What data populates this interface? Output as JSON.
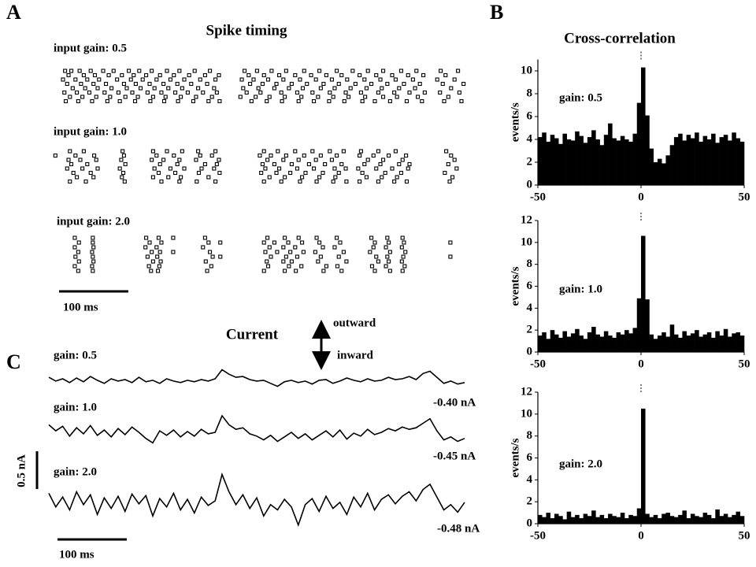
{
  "chart_data": [
    {
      "type": "raster",
      "panel_label": "A",
      "title": "Spike timing",
      "xlim": [
        -20,
        600
      ],
      "scale_bar": {
        "value": 100,
        "label": "100 ms"
      },
      "series": [
        {
          "name": "input gain: 0.5",
          "trials": [
            [
              3,
              12,
              24,
              40,
              58,
              73,
              95,
              110,
              128,
              150,
              168,
              190,
              212,
              262,
              280,
              301,
              322,
              348,
              370,
              395,
              418,
              440,
              462,
              488,
              510,
              545,
              570
            ],
            [
              8,
              30,
              46,
              66,
              85,
              102,
              120,
              140,
              160,
              182,
              205,
              225,
              268,
              290,
              312,
              335,
              358,
              380,
              402,
              428,
              452,
              475,
              498,
              520,
              552
            ],
            [
              0,
              18,
              35,
              52,
              78,
              98,
              115,
              135,
              155,
              175,
              198,
              220,
              258,
              275,
              296,
              318,
              342,
              365,
              388,
              410,
              435,
              458,
              480,
              505,
              540,
              565
            ],
            [
              6,
              26,
              44,
              62,
              88,
              105,
              125,
              145,
              165,
              185,
              208,
              270,
              288,
              308,
              330,
              352,
              376,
              398,
              422,
              445,
              468,
              492,
              515,
              548,
              578
            ],
            [
              14,
              32,
              50,
              70,
              92,
              112,
              132,
              152,
              172,
              195,
              218,
              260,
              282,
              305,
              326,
              346,
              372,
              392,
              415,
              438,
              460,
              485,
              508,
              560
            ],
            [
              2,
              20,
              38,
              60,
              80,
              100,
              122,
              142,
              162,
              180,
              202,
              222,
              265,
              285,
              315,
              338,
              360,
              385,
              408,
              430,
              455,
              478,
              500,
              522,
              544,
              572
            ],
            [
              10,
              28,
              48,
              68,
              90,
              108,
              130,
              148,
              170,
              192,
              215,
              256,
              278,
              298,
              320,
              344,
              368,
              390,
              412,
              436,
              462,
              482,
              512,
              556
            ],
            [
              4,
              22,
              42,
              64,
              82,
              104,
              126,
              146,
              166,
              188,
              210,
              226,
              272,
              294,
              316,
              340,
              362,
              384,
              406,
              432,
              450,
              472,
              496,
              518,
              550,
              575
            ]
          ]
        },
        {
          "name": "input gain: 1.0",
          "trials": [
            [
              10,
              30,
              86,
              130,
              150,
              172,
              195,
              220,
              290,
              310,
              335,
              360,
              385,
              405,
              430,
              455,
              480,
              553
            ],
            [
              -11,
              18,
              45,
              88,
              135,
              160,
              198,
              215,
              284,
              300,
              322,
              348,
              372,
              395,
              428,
              448,
              470,
              495,
              560
            ],
            [
              8,
              25,
              48,
              84,
              128,
              145,
              168,
              192,
              225,
              295,
              318,
              340,
              365,
              388,
              440,
              462,
              490,
              565
            ],
            [
              12,
              35,
              90,
              140,
              165,
              205,
              222,
              288,
              305,
              330,
              355,
              378,
              402,
              435,
              458,
              485,
              500,
              556
            ],
            [
              6,
              28,
              50,
              82,
              132,
              155,
              175,
              200,
              218,
              292,
              312,
              338,
              362,
              392,
              408,
              426,
              452,
              475,
              498,
              568
            ],
            [
              15,
              40,
              87,
              138,
              162,
              196,
              226,
              286,
              308,
              328,
              350,
              375,
              398,
              432,
              465,
              488,
              551
            ],
            [
              20,
              44,
              85,
              130,
              152,
              170,
              210,
              298,
              320,
              345,
              370,
              393,
              438,
              460,
              482,
              562
            ],
            [
              10,
              33,
              89,
              142,
              168,
              193,
              220,
              290,
              315,
              342,
              366,
              390,
              409,
              428,
              455,
              478,
              496,
              558
            ]
          ]
        },
        {
          "name": "input gain: 2.0",
          "trials": [
            [
              17,
              43,
              120,
              138,
              159,
              205,
              295,
              320,
              340,
              366,
              395,
              445,
              468,
              490
            ],
            [
              23,
              43,
              125,
              142,
              210,
              227,
              290,
              305,
              325,
              345,
              370,
              400,
              450,
              470,
              492,
              559
            ],
            [
              17,
              44,
              119,
              135,
              202,
              298,
              318,
              335,
              375,
              392,
              448,
              466,
              489
            ],
            [
              22,
              42,
              128,
              140,
              159,
              212,
              292,
              309,
              328,
              347,
              364,
              405,
              443,
              472,
              494
            ],
            [
              18,
              43,
              122,
              136,
              216,
              227,
              300,
              322,
              338,
              372,
              398,
              452,
              468,
              491,
              559
            ],
            [
              23,
              44,
              130,
              141,
              206,
              294,
              318,
              330,
              368,
              409,
              455,
              470,
              489
            ],
            [
              17,
              42,
              124,
              139,
              214,
              296,
              326,
              344,
              380,
              396,
              446,
              466,
              493
            ],
            [
              22,
              43,
              127,
              137,
              208,
              290,
              320,
              336,
              376,
              402,
              450,
              472,
              490
            ]
          ]
        }
      ]
    },
    {
      "type": "histogram",
      "panel_label": "B",
      "title": "Cross-correlation",
      "ylabel": "events/s",
      "annotation": "gain: 0.5",
      "xlim": [
        -50,
        50
      ],
      "xticks": [
        -50,
        0,
        50
      ],
      "ylim": [
        0,
        11
      ],
      "yticks": [
        0,
        2,
        4,
        6,
        8,
        10
      ],
      "bins": [
        -50,
        -48,
        -46,
        -44,
        -42,
        -40,
        -38,
        -36,
        -34,
        -32,
        -30,
        -28,
        -26,
        -24,
        -22,
        -20,
        -18,
        -16,
        -14,
        -12,
        -10,
        -8,
        -6,
        -4,
        -2,
        0,
        2,
        4,
        6,
        8,
        10,
        12,
        14,
        16,
        18,
        20,
        22,
        24,
        26,
        28,
        30,
        32,
        34,
        36,
        38,
        40,
        42,
        44,
        46,
        48,
        50
      ],
      "values": [
        4.2,
        4.6,
        3.8,
        4.4,
        4.1,
        3.6,
        4.5,
        4.0,
        3.9,
        4.7,
        4.3,
        3.7,
        4.2,
        4.8,
        4.0,
        3.5,
        4.4,
        5.4,
        4.1,
        3.9,
        4.3,
        4.0,
        3.8,
        4.5,
        7.2,
        10.3,
        6.1,
        3.2,
        2.0,
        2.3,
        1.9,
        2.6,
        3.5,
        4.2,
        4.5,
        3.9,
        4.4,
        4.1,
        4.6,
        3.8,
        4.3,
        4.0,
        4.5,
        3.7,
        4.2,
        4.4,
        3.9,
        4.6,
        4.1,
        3.8
      ]
    },
    {
      "type": "histogram",
      "ylabel": "events/s",
      "annotation": "gain: 1.0",
      "xlim": [
        -50,
        50
      ],
      "xticks": [
        -50,
        0,
        50
      ],
      "ylim": [
        0,
        12
      ],
      "yticks": [
        0,
        2,
        4,
        6,
        8,
        10,
        12
      ],
      "bins": [
        -50,
        -48,
        -46,
        -44,
        -42,
        -40,
        -38,
        -36,
        -34,
        -32,
        -30,
        -28,
        -26,
        -24,
        -22,
        -20,
        -18,
        -16,
        -14,
        -12,
        -10,
        -8,
        -6,
        -4,
        -2,
        0,
        2,
        4,
        6,
        8,
        10,
        12,
        14,
        16,
        18,
        20,
        22,
        24,
        26,
        28,
        30,
        32,
        34,
        36,
        38,
        40,
        42,
        44,
        46,
        48,
        50
      ],
      "values": [
        1.5,
        1.8,
        1.2,
        2.0,
        1.6,
        1.3,
        1.9,
        1.4,
        1.7,
        2.1,
        1.5,
        1.2,
        1.8,
        2.3,
        1.6,
        1.4,
        1.9,
        1.5,
        1.3,
        1.8,
        1.6,
        2.0,
        1.7,
        2.2,
        4.9,
        10.6,
        4.8,
        1.6,
        1.2,
        1.5,
        1.8,
        1.4,
        2.5,
        1.6,
        1.3,
        1.9,
        1.5,
        1.7,
        2.0,
        1.4,
        1.6,
        1.8,
        1.3,
        1.9,
        1.5,
        2.1,
        1.4,
        1.7,
        1.8,
        1.5
      ]
    },
    {
      "type": "histogram",
      "ylabel": "events/s",
      "annotation": "gain: 2.0",
      "xlim": [
        -50,
        50
      ],
      "xticks": [
        -50,
        0,
        50
      ],
      "ylim": [
        0,
        12
      ],
      "yticks": [
        0,
        2,
        4,
        6,
        8,
        10,
        12
      ],
      "bins": [
        -50,
        -48,
        -46,
        -44,
        -42,
        -40,
        -38,
        -36,
        -34,
        -32,
        -30,
        -28,
        -26,
        -24,
        -22,
        -20,
        -18,
        -16,
        -14,
        -12,
        -10,
        -8,
        -6,
        -4,
        -2,
        0,
        2,
        4,
        6,
        8,
        10,
        12,
        14,
        16,
        18,
        20,
        22,
        24,
        26,
        28,
        30,
        32,
        34,
        36,
        38,
        40,
        42,
        44,
        46,
        48,
        50
      ],
      "values": [
        0.8,
        0.6,
        1.0,
        0.5,
        0.9,
        0.7,
        0.4,
        1.1,
        0.6,
        0.8,
        0.5,
        0.9,
        0.7,
        1.2,
        0.6,
        0.8,
        0.5,
        0.9,
        0.7,
        0.6,
        1.0,
        0.5,
        0.8,
        0.7,
        1.4,
        10.5,
        0.9,
        0.6,
        0.8,
        0.5,
        0.9,
        1.0,
        0.7,
        0.6,
        0.8,
        1.2,
        0.5,
        0.9,
        0.7,
        0.6,
        1.0,
        0.8,
        0.5,
        1.3,
        0.7,
        0.9,
        0.6,
        0.8,
        1.1,
        0.7
      ]
    },
    {
      "type": "line",
      "panel_label": "C",
      "title": "Current",
      "annotations": [
        "outward",
        "inward"
      ],
      "xlim": [
        0,
        600
      ],
      "scale_bar_x": {
        "value": 100,
        "label": "100 ms"
      },
      "scale_bar_y": {
        "value": 0.5,
        "label": "0.5 nA"
      },
      "x": [
        0,
        10,
        20,
        30,
        40,
        50,
        60,
        70,
        80,
        90,
        100,
        110,
        120,
        130,
        140,
        150,
        160,
        170,
        180,
        190,
        200,
        210,
        220,
        230,
        240,
        250,
        260,
        270,
        280,
        290,
        300,
        310,
        320,
        330,
        340,
        350,
        360,
        370,
        380,
        390,
        400,
        410,
        420,
        430,
        440,
        450,
        460,
        470,
        480,
        490,
        500,
        510,
        520,
        530,
        540,
        550,
        560,
        570,
        580,
        590,
        600
      ],
      "series": [
        {
          "name": "gain: 0.5",
          "holding_label": "-0.40 nA",
          "values": [
            0.02,
            -0.03,
            0.0,
            -0.05,
            0.01,
            -0.04,
            0.03,
            -0.02,
            -0.06,
            0.0,
            -0.03,
            -0.01,
            -0.05,
            0.02,
            -0.04,
            -0.02,
            -0.06,
            0.0,
            -0.03,
            -0.05,
            -0.02,
            -0.04,
            -0.01,
            -0.03,
            0.0,
            0.12,
            0.06,
            0.02,
            0.03,
            -0.01,
            -0.03,
            -0.02,
            -0.06,
            -0.1,
            -0.04,
            -0.02,
            -0.05,
            -0.03,
            -0.07,
            -0.02,
            -0.01,
            -0.06,
            -0.03,
            0.01,
            -0.02,
            -0.04,
            0.0,
            -0.03,
            -0.02,
            0.02,
            -0.01,
            0.0,
            0.03,
            -0.01,
            0.07,
            0.1,
            0.02,
            -0.06,
            -0.03,
            -0.07,
            -0.05
          ]
        },
        {
          "name": "gain: 1.0",
          "holding_label": "-0.45 nA",
          "values": [
            0.1,
            0.02,
            0.08,
            -0.05,
            0.06,
            -0.02,
            0.09,
            -0.04,
            0.03,
            -0.06,
            0.05,
            -0.03,
            0.07,
            0.0,
            -0.08,
            -0.14,
            0.02,
            -0.04,
            0.03,
            -0.06,
            0.01,
            -0.05,
            0.04,
            -0.02,
            0.0,
            0.22,
            0.1,
            0.04,
            0.06,
            -0.02,
            -0.05,
            -0.1,
            -0.04,
            -0.12,
            -0.06,
            0.0,
            -0.08,
            -0.02,
            -0.1,
            -0.04,
            0.02,
            -0.06,
            0.03,
            -0.09,
            -0.01,
            -0.05,
            0.04,
            -0.03,
            0.0,
            0.05,
            0.02,
            0.07,
            0.04,
            0.06,
            0.12,
            0.18,
            0.02,
            -0.1,
            -0.06,
            -0.12,
            -0.08
          ]
        },
        {
          "name": "gain: 2.0",
          "holding_label": "-0.48 nA",
          "values": [
            0.1,
            -0.08,
            0.05,
            -0.12,
            0.12,
            -0.05,
            0.08,
            -0.18,
            0.04,
            -0.1,
            0.06,
            -0.14,
            0.09,
            -0.04,
            0.07,
            -0.2,
            0.03,
            -0.08,
            0.1,
            -0.12,
            0.02,
            -0.16,
            0.05,
            -0.06,
            0.0,
            0.35,
            0.12,
            -0.05,
            0.08,
            -0.1,
            0.04,
            -0.2,
            -0.05,
            -0.12,
            0.02,
            -0.08,
            -0.32,
            -0.05,
            0.03,
            -0.14,
            0.06,
            -0.1,
            -0.02,
            -0.18,
            0.05,
            -0.08,
            0.1,
            -0.12,
            0.02,
            0.08,
            -0.04,
            0.06,
            0.12,
            0.0,
            0.15,
            0.22,
            0.05,
            -0.12,
            -0.05,
            -0.15,
            -0.02
          ]
        }
      ]
    }
  ]
}
